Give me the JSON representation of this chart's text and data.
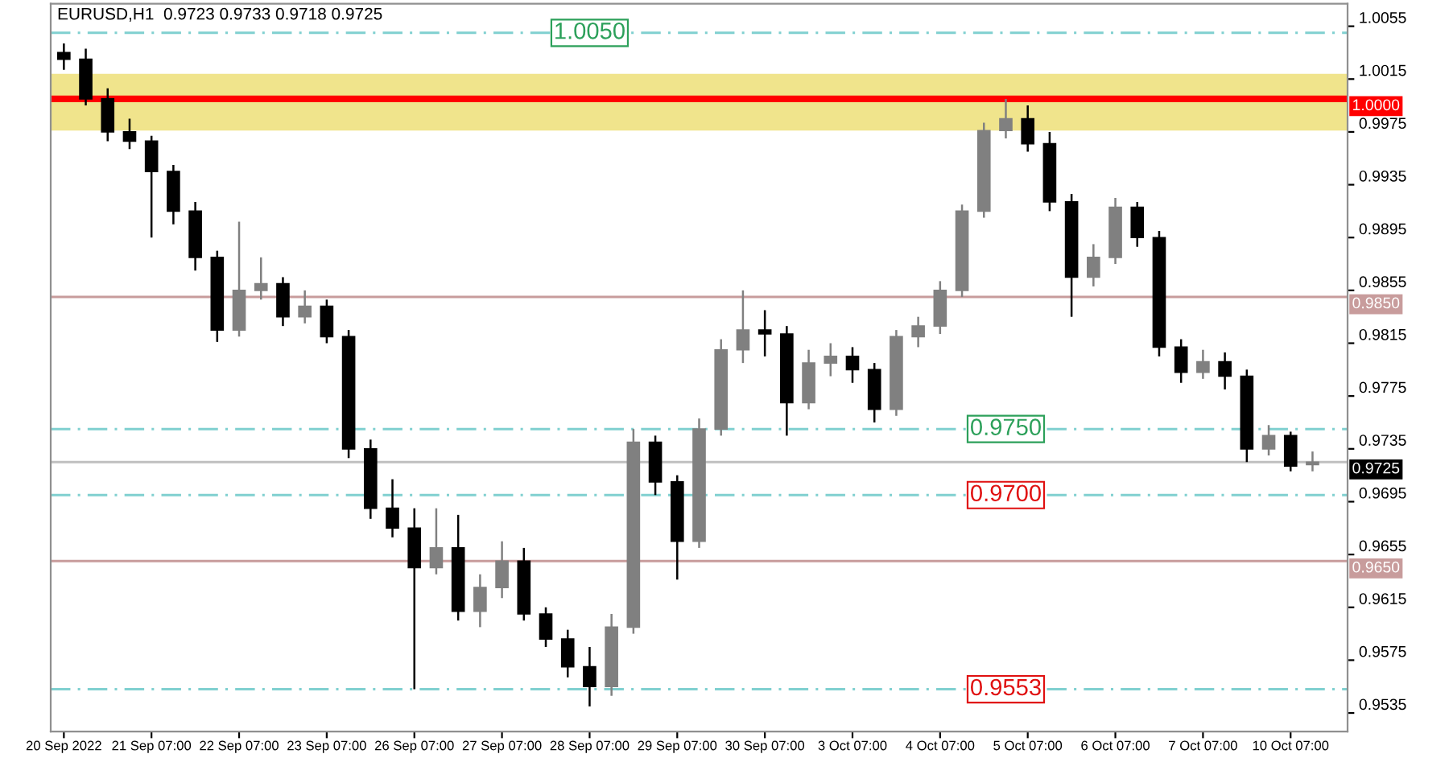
{
  "chart_data": {
    "type": "candlestick",
    "title": "EURUSD,H1  0.9723 0.9733 0.9718 0.9725",
    "categories": [
      "20 Sep 2022",
      null,
      null,
      null,
      "21 Sep 07:00",
      null,
      null,
      null,
      "22 Sep 07:00",
      null,
      null,
      null,
      "23 Sep 07:00",
      null,
      null,
      null,
      "26 Sep 07:00",
      null,
      null,
      null,
      "27 Sep 07:00",
      null,
      null,
      null,
      "28 Sep 07:00",
      null,
      null,
      null,
      "29 Sep 07:00",
      null,
      null,
      null,
      "30 Sep 07:00",
      null,
      null,
      null,
      "3 Oct 07:00",
      null,
      null,
      null,
      "4 Oct 07:00",
      null,
      null,
      null,
      "5 Oct 07:00",
      null,
      null,
      null,
      "6 Oct 07:00",
      null,
      null,
      null,
      "7 Oct 07:00",
      null,
      null,
      null,
      "10 Oct 07:00",
      null
    ],
    "ohlc": [
      [
        1.0035,
        1.0042,
        1.0022,
        1.003
      ],
      [
        1.003,
        1.0038,
        0.9995,
        1.0
      ],
      [
        1.0,
        1.0008,
        0.9968,
        0.9975
      ],
      [
        0.9975,
        0.9985,
        0.9962,
        0.9968
      ],
      [
        0.9968,
        0.9972,
        0.9895,
        0.9945
      ],
      [
        0.9945,
        0.995,
        0.9905,
        0.9915
      ],
      [
        0.9915,
        0.9922,
        0.987,
        0.988
      ],
      [
        0.988,
        0.9885,
        0.9816,
        0.9825
      ],
      [
        0.9825,
        0.9907,
        0.982,
        0.9855
      ],
      [
        0.9855,
        0.988,
        0.9848,
        0.986
      ],
      [
        0.986,
        0.9865,
        0.9828,
        0.9835
      ],
      [
        0.9835,
        0.9855,
        0.983,
        0.9843
      ],
      [
        0.9843,
        0.9848,
        0.9815,
        0.982
      ],
      [
        0.982,
        0.9825,
        0.9728,
        0.9735
      ],
      [
        0.9735,
        0.9742,
        0.9682,
        0.969
      ],
      [
        0.969,
        0.9712,
        0.9668,
        0.9675
      ],
      [
        0.9675,
        0.969,
        0.9553,
        0.9645
      ],
      [
        0.9645,
        0.969,
        0.964,
        0.966
      ],
      [
        0.966,
        0.9685,
        0.9605,
        0.9612
      ],
      [
        0.9612,
        0.964,
        0.96,
        0.963
      ],
      [
        0.963,
        0.9665,
        0.9622,
        0.965
      ],
      [
        0.965,
        0.966,
        0.9605,
        0.961
      ],
      [
        0.961,
        0.9615,
        0.9585,
        0.9591
      ],
      [
        0.9591,
        0.9598,
        0.9562,
        0.957
      ],
      [
        0.957,
        0.9585,
        0.954,
        0.9555
      ],
      [
        0.9555,
        0.961,
        0.9548,
        0.96
      ],
      [
        0.96,
        0.975,
        0.9595,
        0.974
      ],
      [
        0.974,
        0.9745,
        0.97,
        0.971
      ],
      [
        0.971,
        0.9715,
        0.9636,
        0.9665
      ],
      [
        0.9665,
        0.9758,
        0.966,
        0.975
      ],
      [
        0.975,
        0.9818,
        0.9745,
        0.981
      ],
      [
        0.981,
        0.9855,
        0.98,
        0.9825
      ],
      [
        0.9825,
        0.984,
        0.9805,
        0.9822
      ],
      [
        0.9822,
        0.9828,
        0.9745,
        0.977
      ],
      [
        0.977,
        0.981,
        0.9765,
        0.98
      ],
      [
        0.98,
        0.9815,
        0.979,
        0.9805
      ],
      [
        0.9805,
        0.9812,
        0.9785,
        0.9795
      ],
      [
        0.9795,
        0.98,
        0.9755,
        0.9765
      ],
      [
        0.9765,
        0.9825,
        0.976,
        0.982
      ],
      [
        0.982,
        0.9835,
        0.9812,
        0.9828
      ],
      [
        0.9828,
        0.9862,
        0.9822,
        0.9855
      ],
      [
        0.9855,
        0.992,
        0.985,
        0.9915
      ],
      [
        0.9915,
        0.9982,
        0.991,
        0.9976
      ],
      [
        0.9976,
        1.0,
        0.997,
        0.9985
      ],
      [
        0.9985,
        0.9995,
        0.996,
        0.9966
      ],
      [
        0.9966,
        0.9975,
        0.9915,
        0.9922
      ],
      [
        0.9922,
        0.9928,
        0.9835,
        0.9865
      ],
      [
        0.9865,
        0.989,
        0.9858,
        0.988
      ],
      [
        0.988,
        0.9925,
        0.9875,
        0.9918
      ],
      [
        0.9918,
        0.9922,
        0.9888,
        0.9895
      ],
      [
        0.9895,
        0.99,
        0.9805,
        0.9812
      ],
      [
        0.9812,
        0.9818,
        0.9785,
        0.9793
      ],
      [
        0.9793,
        0.981,
        0.9788,
        0.9801
      ],
      [
        0.9801,
        0.9808,
        0.978,
        0.979
      ],
      [
        0.979,
        0.9795,
        0.9725,
        0.9735
      ],
      [
        0.9735,
        0.9753,
        0.973,
        0.9745
      ],
      [
        0.9745,
        0.9748,
        0.9718,
        0.9722
      ],
      [
        0.9723,
        0.9733,
        0.9718,
        0.9725
      ]
    ],
    "colors": [
      "#000000",
      "#000000",
      "#000000",
      "#000000",
      "#000000",
      "#000000",
      "#000000",
      "#000000",
      "#808080",
      "#808080",
      "#000000",
      "#808080",
      "#000000",
      "#000000",
      "#000000",
      "#000000",
      "#000000",
      "#808080",
      "#000000",
      "#808080",
      "#808080",
      "#000000",
      "#000000",
      "#000000",
      "#000000",
      "#808080",
      "#808080",
      "#000000",
      "#000000",
      "#808080",
      "#808080",
      "#808080",
      "#000000",
      "#000000",
      "#808080",
      "#808080",
      "#000000",
      "#000000",
      "#808080",
      "#808080",
      "#808080",
      "#808080",
      "#808080",
      "#808080",
      "#000000",
      "#000000",
      "#000000",
      "#808080",
      "#808080",
      "#000000",
      "#000000",
      "#000000",
      "#808080",
      "#000000",
      "#000000",
      "#808080",
      "#000000",
      "#808080"
    ],
    "ylim": [
      0.9521,
      1.0072
    ],
    "yticks": [
      1.0055,
      1.0015,
      0.9975,
      0.9935,
      0.9895,
      0.9855,
      0.9815,
      0.9775,
      0.9735,
      0.9695,
      0.9655,
      0.9615,
      0.9575,
      0.9535
    ],
    "ref_lines": [
      {
        "axis": "y",
        "value": 1.0,
        "label": "1.0000",
        "color": "#ff0000",
        "line_style": "solid"
      },
      {
        "axis": "y",
        "value": 0.985,
        "label": "0.9850",
        "color": "#c89c9c",
        "line_style": "solid"
      },
      {
        "axis": "y",
        "value": 0.965,
        "label": "0.9650",
        "color": "#c89c9c",
        "line_style": "solid"
      },
      {
        "axis": "y",
        "value": 0.9725,
        "label": "0.9725",
        "color": "#c0c0c0",
        "line_style": "solid"
      },
      {
        "axis": "y",
        "value": 1.005,
        "label": "1.0050",
        "color": "#80d0d0",
        "line_style": "dashed"
      },
      {
        "axis": "y",
        "value": 0.975,
        "label": "0.9750",
        "color": "#80d0d0",
        "line_style": "dashed"
      },
      {
        "axis": "y",
        "value": 0.97,
        "label": "0.9700",
        "color": "#80d0d0",
        "line_style": "dashed"
      },
      {
        "axis": "y",
        "value": 0.9553,
        "label": "0.9553",
        "color": "#80d0d0",
        "line_style": "dashed"
      }
    ],
    "bands": [
      {
        "axis": "y",
        "from": 0.9976,
        "to": 1.0019,
        "color": "#f0e48c"
      }
    ],
    "grid": false,
    "legend": false
  }
}
